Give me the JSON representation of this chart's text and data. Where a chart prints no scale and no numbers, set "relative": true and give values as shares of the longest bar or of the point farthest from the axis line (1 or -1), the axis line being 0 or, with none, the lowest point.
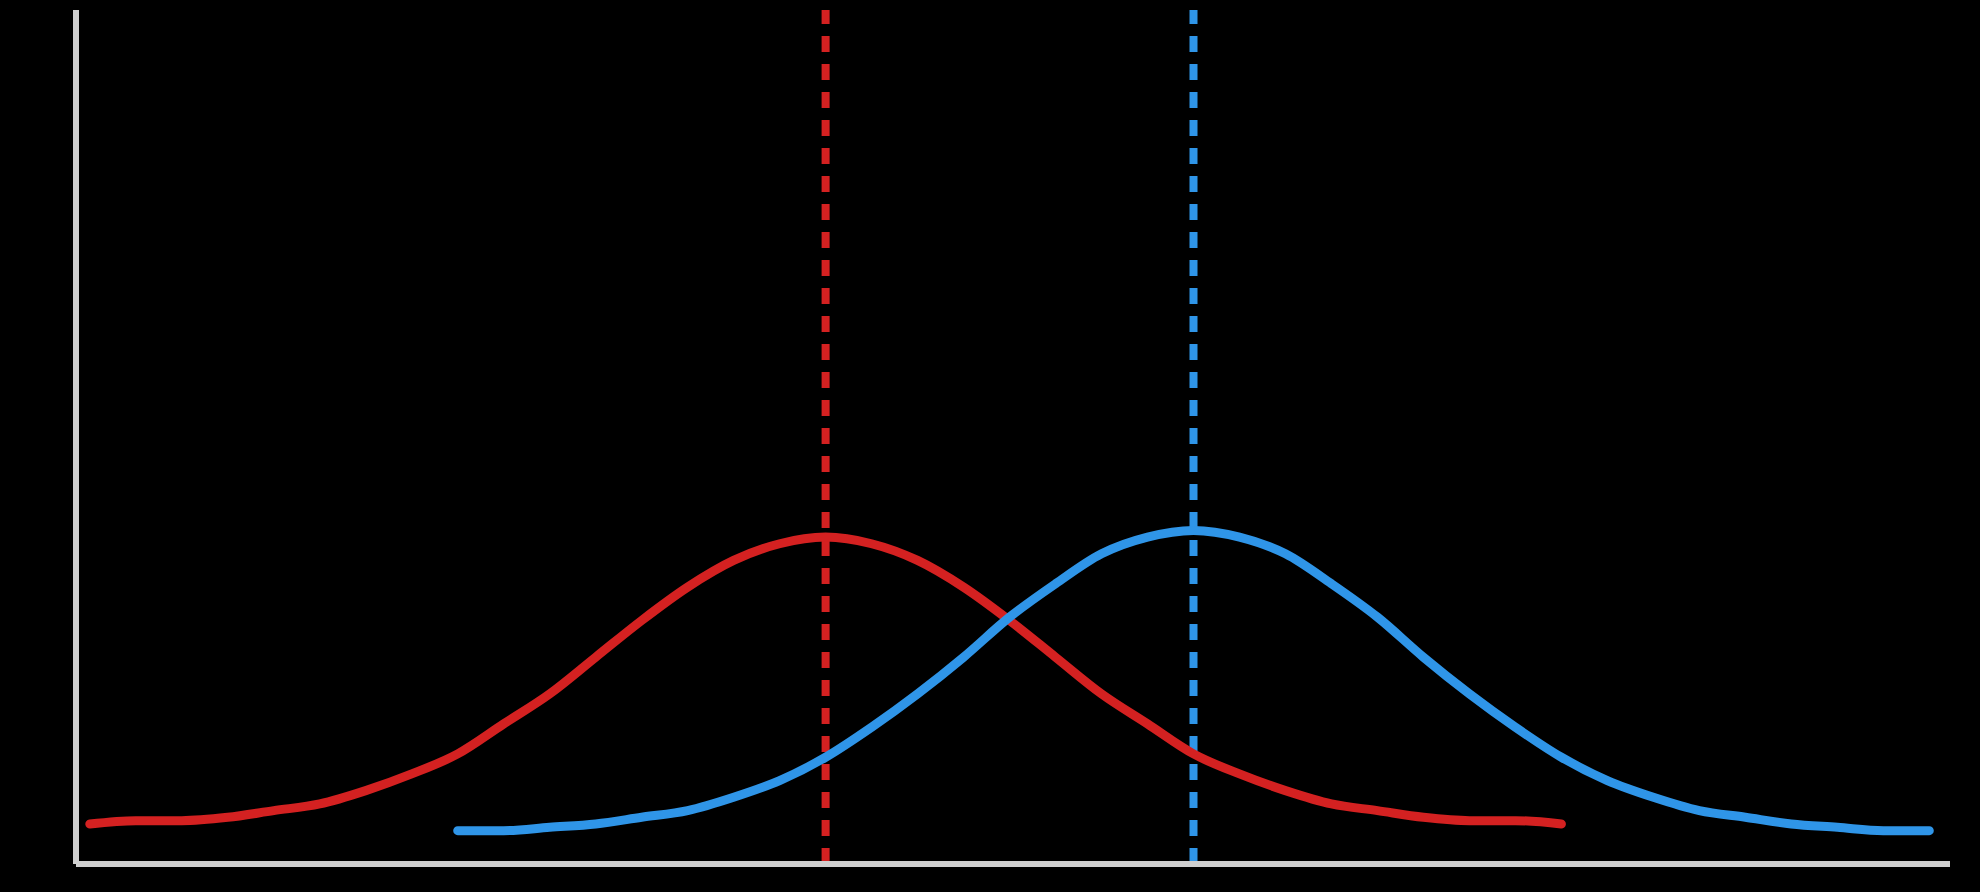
{
  "chart_data": {
    "type": "line",
    "relative": true,
    "categories": [
      null,
      null,
      null,
      null,
      null,
      null,
      null,
      null,
      null,
      null,
      null,
      null,
      null,
      null,
      null,
      null,
      null,
      null,
      null,
      null,
      null,
      null,
      null,
      null,
      null,
      null,
      null,
      null,
      null,
      null,
      null,
      null,
      null,
      null,
      null,
      null,
      null,
      null,
      null,
      null,
      null
    ],
    "series": [
      {
        "color": "#d42121",
        "values": [
          0.12,
          0.13,
          0.13,
          0.14,
          0.16,
          0.18,
          0.22,
          0.27,
          0.33,
          0.42,
          0.51,
          0.62,
          0.73,
          0.83,
          0.91,
          0.96,
          0.98,
          0.96,
          0.91,
          0.83,
          0.73,
          0.62,
          0.51,
          0.42,
          0.33,
          0.27,
          0.22,
          0.18,
          0.16,
          0.14,
          0.13,
          0.13,
          0.12,
          null,
          null,
          null,
          null,
          null,
          null,
          null,
          null
        ]
      },
      {
        "color": "#2f95e8",
        "values": [
          null,
          null,
          null,
          null,
          null,
          null,
          null,
          null,
          0.1,
          0.1,
          0.11,
          0.12,
          0.14,
          0.16,
          0.2,
          0.25,
          0.32,
          0.41,
          0.51,
          0.62,
          0.74,
          0.84,
          0.93,
          0.98,
          1.0,
          0.98,
          0.93,
          0.84,
          0.74,
          0.62,
          0.51,
          0.41,
          0.32,
          0.25,
          0.2,
          0.16,
          0.14,
          0.12,
          0.11,
          0.1,
          0.1
        ]
      }
    ],
    "grid": false,
    "legend": false,
    "marker": "none",
    "line_style": "solid"
  }
}
